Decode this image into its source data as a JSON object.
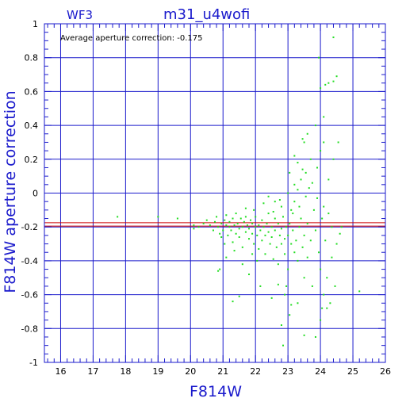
{
  "header": {
    "chip": "WF3",
    "title": "m31_u4wofi"
  },
  "annotation": {
    "text": "Average aperture correction: -0.175"
  },
  "chart_data": {
    "type": "scatter",
    "xlabel": "F814W",
    "ylabel": "F814W aperture correction",
    "xlim": [
      15.5,
      26
    ],
    "ylim": [
      -1,
      1
    ],
    "x_ticks": [
      "16",
      "17",
      "18",
      "19",
      "20",
      "21",
      "22",
      "23",
      "24",
      "25",
      "26"
    ],
    "y_ticks": [
      "1",
      "0.8",
      "0.6",
      "0.4",
      "0.2",
      "0",
      "-0.2",
      "-0.4",
      "-0.6",
      "-0.8",
      "-1"
    ],
    "x_tick_values": [
      16,
      17,
      18,
      19,
      20,
      21,
      22,
      23,
      24,
      25,
      26
    ],
    "y_tick_values": [
      1,
      0.8,
      0.6,
      0.4,
      0.2,
      0,
      -0.2,
      -0.4,
      -0.6,
      -0.8,
      -1
    ],
    "grid": true,
    "reference_lines": [
      {
        "label": "Average aperture correction",
        "y": -0.175,
        "color": "#cc0000"
      },
      {
        "y": -0.195,
        "color": "#cc0000"
      }
    ],
    "colors": {
      "axis": "#1a1acc",
      "grid": "#1a1acc",
      "points": "#22dd22",
      "mean_line": "#cc0000"
    },
    "points": [
      [
        17.75,
        -0.14
      ],
      [
        19.0,
        -0.14
      ],
      [
        19.6,
        -0.15
      ],
      [
        20.1,
        -0.21
      ],
      [
        20.1,
        -0.19
      ],
      [
        20.25,
        -0.2
      ],
      [
        20.4,
        -0.18
      ],
      [
        20.5,
        -0.16
      ],
      [
        20.6,
        -0.19
      ],
      [
        20.7,
        -0.22
      ],
      [
        20.75,
        -0.17
      ],
      [
        20.8,
        -0.14
      ],
      [
        20.85,
        -0.2
      ],
      [
        20.9,
        -0.24
      ],
      [
        20.95,
        -0.18
      ],
      [
        20.9,
        -0.45
      ],
      [
        21.0,
        -0.22
      ],
      [
        21.05,
        -0.16
      ],
      [
        21.1,
        -0.19
      ],
      [
        21.1,
        -0.13
      ],
      [
        21.15,
        -0.25
      ],
      [
        21.2,
        -0.2
      ],
      [
        21.2,
        -0.17
      ],
      [
        21.25,
        -0.22
      ],
      [
        21.3,
        -0.15
      ],
      [
        21.3,
        -0.29
      ],
      [
        21.35,
        -0.19
      ],
      [
        21.4,
        -0.24
      ],
      [
        21.4,
        -0.12
      ],
      [
        21.45,
        -0.18
      ],
      [
        21.5,
        -0.21
      ],
      [
        21.5,
        -0.26
      ],
      [
        21.55,
        -0.15
      ],
      [
        21.6,
        -0.2
      ],
      [
        21.6,
        -0.32
      ],
      [
        21.65,
        -0.17
      ],
      [
        21.7,
        -0.23
      ],
      [
        21.7,
        -0.14
      ],
      [
        21.75,
        -0.19
      ],
      [
        21.8,
        -0.27
      ],
      [
        21.8,
        -0.21
      ],
      [
        21.85,
        -0.16
      ],
      [
        21.9,
        -0.24
      ],
      [
        21.9,
        -0.18
      ],
      [
        21.95,
        -0.3
      ],
      [
        22.0,
        -0.2
      ],
      [
        22.0,
        -0.14
      ],
      [
        22.05,
        -0.25
      ],
      [
        22.1,
        -0.19
      ],
      [
        22.1,
        -0.33
      ],
      [
        22.15,
        -0.22
      ],
      [
        22.2,
        -0.16
      ],
      [
        22.2,
        -0.28
      ],
      [
        22.25,
        -0.2
      ],
      [
        22.3,
        -0.25
      ],
      [
        22.3,
        -0.36
      ],
      [
        22.35,
        -0.18
      ],
      [
        22.4,
        -0.23
      ],
      [
        22.4,
        -0.12
      ],
      [
        22.45,
        -0.3
      ],
      [
        22.5,
        -0.2
      ],
      [
        22.5,
        -0.26
      ],
      [
        22.55,
        -0.39
      ],
      [
        22.6,
        -0.15
      ],
      [
        22.6,
        -0.22
      ],
      [
        22.65,
        -0.32
      ],
      [
        22.7,
        -0.18
      ],
      [
        22.7,
        -0.42
      ],
      [
        22.75,
        -0.25
      ],
      [
        22.8,
        -0.21
      ],
      [
        22.8,
        -0.3
      ],
      [
        22.85,
        -0.14
      ],
      [
        22.9,
        -0.27
      ],
      [
        22.9,
        -0.36
      ],
      [
        22.95,
        -0.2
      ],
      [
        23.0,
        -0.25
      ],
      [
        23.0,
        -0.45
      ],
      [
        23.05,
        -0.18
      ],
      [
        23.1,
        -0.3
      ],
      [
        23.1,
        -0.1
      ],
      [
        23.15,
        -0.22
      ],
      [
        23.2,
        -0.35
      ],
      [
        23.2,
        -0.05
      ],
      [
        23.25,
        -0.28
      ],
      [
        23.3,
        0.02
      ],
      [
        23.3,
        -0.4
      ],
      [
        23.35,
        -0.2
      ],
      [
        23.4,
        -0.15
      ],
      [
        23.4,
        0.08
      ],
      [
        23.45,
        -0.32
      ],
      [
        23.5,
        -0.25
      ],
      [
        23.5,
        -0.5
      ],
      [
        23.55,
        0.12
      ],
      [
        23.6,
        -0.18
      ],
      [
        23.6,
        -0.38
      ],
      [
        23.65,
        0.03
      ],
      [
        23.7,
        -0.28
      ],
      [
        23.75,
        -0.55
      ],
      [
        23.8,
        -0.1
      ],
      [
        23.85,
        -0.22
      ],
      [
        23.9,
        0.15
      ],
      [
        23.95,
        -0.35
      ],
      [
        24.0,
        -0.45
      ],
      [
        24.0,
        0.25
      ],
      [
        24.05,
        -0.15
      ],
      [
        24.1,
        0.3
      ],
      [
        24.1,
        -0.6
      ],
      [
        24.15,
        -0.28
      ],
      [
        24.2,
        -0.5
      ],
      [
        24.25,
        0.08
      ],
      [
        24.3,
        -0.65
      ],
      [
        24.35,
        -0.38
      ],
      [
        24.4,
        0.2
      ],
      [
        24.45,
        -0.55
      ],
      [
        24.5,
        -0.3
      ],
      [
        22.6,
        -0.05
      ],
      [
        22.8,
        -0.08
      ],
      [
        23.0,
        0.0
      ],
      [
        22.4,
        -0.02
      ],
      [
        23.2,
        0.05
      ],
      [
        23.5,
        0.3
      ],
      [
        23.6,
        0.35
      ],
      [
        23.45,
        0.32
      ],
      [
        23.85,
        0.4
      ],
      [
        24.1,
        0.45
      ],
      [
        24.0,
        0.62
      ],
      [
        24.15,
        0.64
      ],
      [
        24.25,
        0.65
      ],
      [
        24.4,
        0.66
      ],
      [
        24.5,
        0.69
      ],
      [
        23.95,
        0.8
      ],
      [
        24.4,
        0.92
      ],
      [
        24.55,
        0.3
      ],
      [
        24.0,
        -0.75
      ],
      [
        24.2,
        -0.68
      ],
      [
        24.05,
        -0.68
      ],
      [
        23.85,
        -0.85
      ],
      [
        23.5,
        -0.84
      ],
      [
        22.85,
        -0.9
      ],
      [
        22.8,
        -0.78
      ],
      [
        23.05,
        -0.72
      ],
      [
        23.1,
        -0.66
      ],
      [
        23.3,
        -0.65
      ],
      [
        22.9,
        -0.6
      ],
      [
        22.95,
        -0.55
      ],
      [
        25.2,
        -0.58
      ],
      [
        24.6,
        -0.24
      ],
      [
        24.65,
        -0.2
      ],
      [
        21.5,
        -0.61
      ],
      [
        21.3,
        -0.64
      ],
      [
        20.85,
        -0.46
      ],
      [
        21.1,
        -0.38
      ],
      [
        21.6,
        -0.42
      ],
      [
        21.8,
        -0.48
      ],
      [
        22.15,
        -0.55
      ],
      [
        22.5,
        -0.62
      ],
      [
        22.7,
        -0.54
      ],
      [
        21.9,
        -0.36
      ],
      [
        22.05,
        -0.4
      ],
      [
        21.35,
        -0.34
      ],
      [
        21.05,
        -0.3
      ],
      [
        20.95,
        -0.26
      ],
      [
        21.7,
        -0.09
      ],
      [
        21.95,
        -0.1
      ],
      [
        22.25,
        -0.06
      ],
      [
        22.55,
        -0.11
      ],
      [
        22.75,
        -0.04
      ],
      [
        23.15,
        -0.12
      ],
      [
        23.35,
        -0.08
      ],
      [
        23.55,
        -0.02
      ],
      [
        23.75,
        0.06
      ],
      [
        23.9,
        -0.03
      ],
      [
        24.1,
        -0.08
      ],
      [
        24.25,
        -0.12
      ],
      [
        24.35,
        -0.2
      ],
      [
        23.7,
        0.2
      ],
      [
        23.3,
        0.18
      ],
      [
        23.05,
        0.12
      ],
      [
        23.2,
        0.22
      ],
      [
        23.45,
        0.14
      ]
    ]
  }
}
